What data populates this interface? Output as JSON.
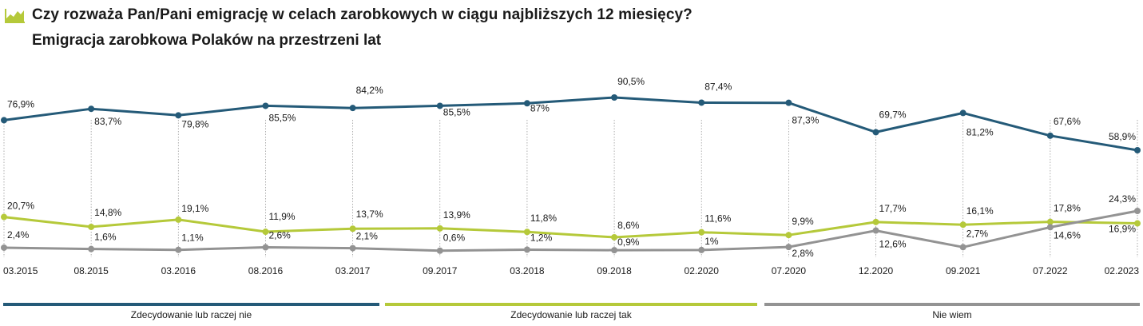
{
  "title": "Czy rozważa Pan/Pani emigrację w celach zarobkowych w ciągu najbliższych 12 miesięcy?",
  "subtitle": "Emigracja zarobkowa Polaków na przestrzeni lat",
  "icon": "area-chart-icon",
  "chart_data": {
    "type": "line",
    "categories": [
      "03.2015",
      "08.2015",
      "03.2016",
      "08.2016",
      "03.2017",
      "09.2017",
      "03.2018",
      "09.2018",
      "02.2020",
      "07.2020",
      "12.2020",
      "09.2021",
      "07.2022",
      "02.2023"
    ],
    "grid": "vertical dotted",
    "legend_placement": "bottom",
    "series": [
      {
        "name": "Zdecydowanie lub raczej nie",
        "color": "#245a78",
        "values": [
          76.9,
          83.7,
          79.8,
          85.5,
          84.2,
          85.5,
          87,
          90.5,
          87.4,
          87.3,
          69.7,
          81.2,
          67.6,
          58.9
        ],
        "labels": [
          "76,9%",
          "83,7%",
          "79,8%",
          "85,5%",
          "84,2%",
          "85,5%",
          "87%",
          "90,5%",
          "87,4%",
          "87,3%",
          "69,7%",
          "81,2%",
          "67,6%",
          "58,9%"
        ]
      },
      {
        "name": "Zdecydowanie lub raczej tak",
        "color": "#b5c93a",
        "values": [
          20.7,
          14.8,
          19.1,
          11.9,
          13.7,
          13.9,
          11.8,
          8.6,
          11.6,
          9.9,
          17.7,
          16.1,
          17.8,
          16.9
        ],
        "labels": [
          "20,7%",
          "14,8%",
          "19,1%",
          "11,9%",
          "13,7%",
          "13,9%",
          "11,8%",
          "8,6%",
          "11,6%",
          "9,9%",
          "17,7%",
          "16,1%",
          "17,8%",
          "16,9%"
        ]
      },
      {
        "name": "Nie wiem",
        "color": "#939393",
        "values": [
          2.4,
          1.6,
          1.1,
          2.6,
          2.1,
          0.6,
          1.2,
          0.9,
          1,
          2.8,
          12.6,
          2.7,
          14.6,
          24.3
        ],
        "labels": [
          "2,4%",
          "1,6%",
          "1,1%",
          "2,6%",
          "2,1%",
          "0,6%",
          "1,2%",
          "0,9%",
          "1%",
          "2,8%",
          "12,6%",
          "2,7%",
          "14,6%",
          "24,3%"
        ]
      }
    ]
  }
}
